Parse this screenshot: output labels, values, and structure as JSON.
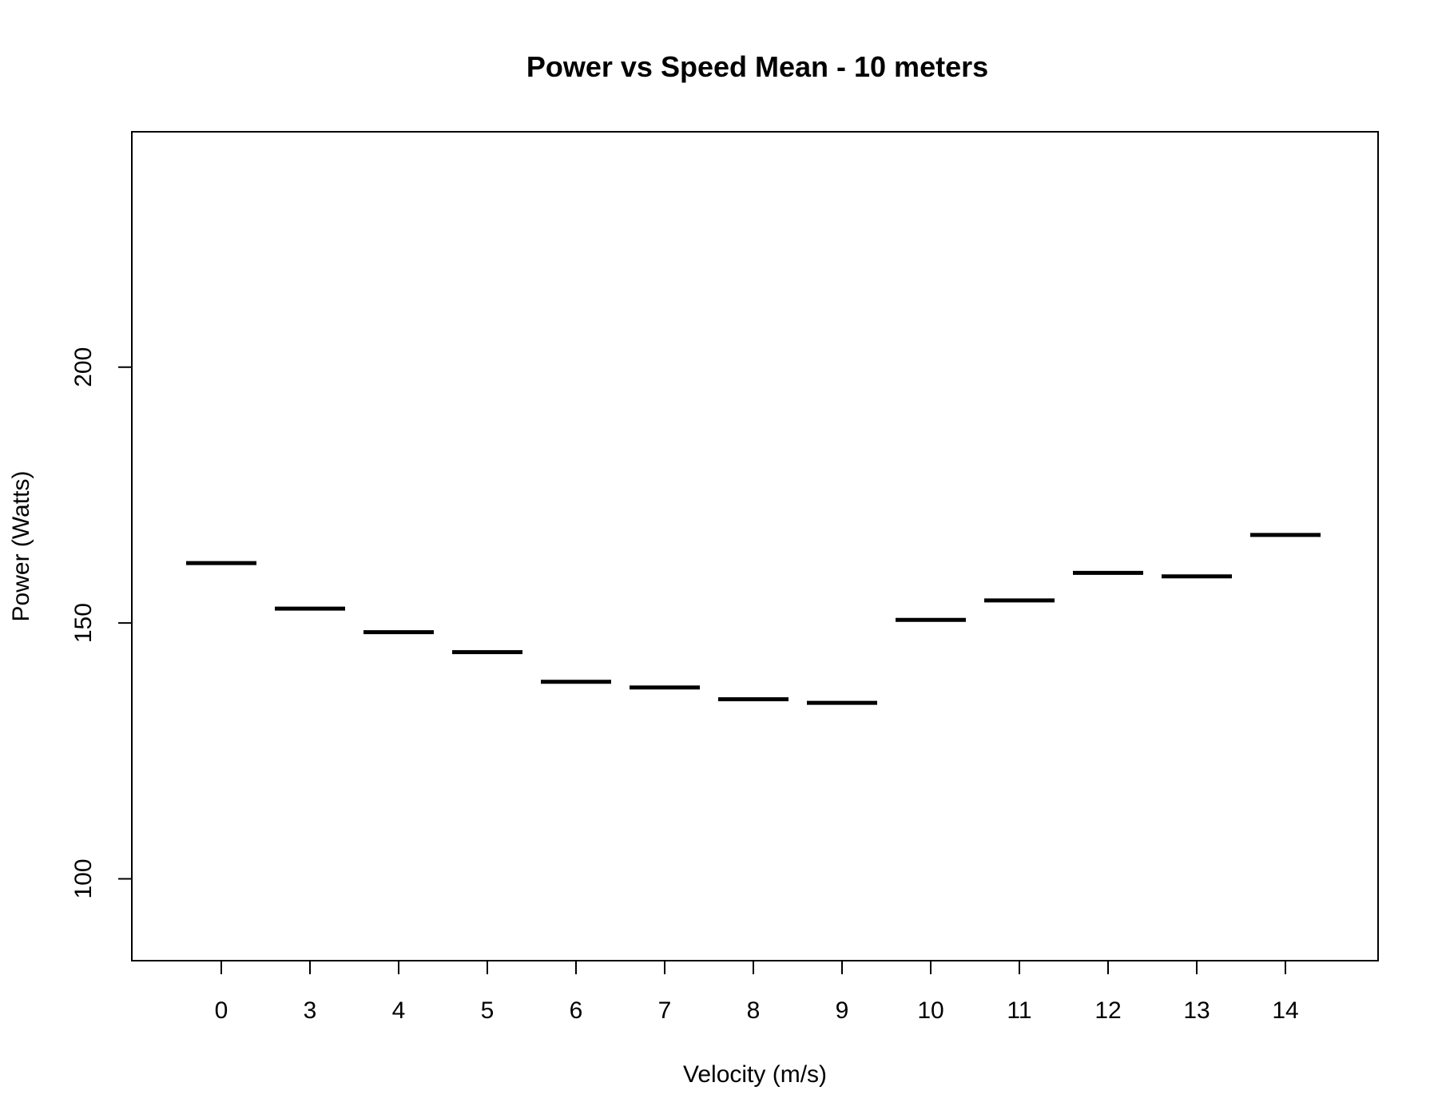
{
  "chart_data": {
    "type": "bar",
    "title": "Power vs Speed Mean - 10 meters",
    "xlabel": "Velocity (m/s)",
    "ylabel": "Power (Watts)",
    "categories": [
      "0",
      "3",
      "4",
      "5",
      "6",
      "7",
      "8",
      "9",
      "10",
      "11",
      "12",
      "13",
      "14"
    ],
    "values": [
      161.7,
      152.8,
      148.2,
      144.3,
      138.5,
      137.4,
      135.1,
      134.4,
      150.6,
      154.4,
      159.8,
      159.1,
      167.2
    ],
    "ylim": [
      84,
      246
    ],
    "yticks": [
      100,
      150,
      200
    ],
    "grid": false,
    "legend": "none",
    "mark_color": "#000000"
  }
}
